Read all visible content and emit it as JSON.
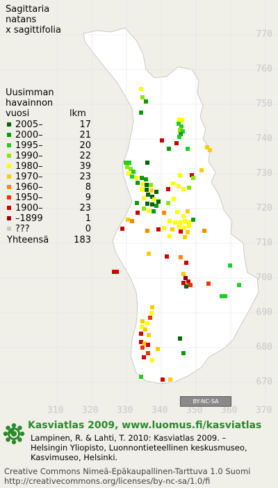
{
  "title_lines": [
    "Sagittaria",
    "natans",
    "x sagittifolia"
  ],
  "legend": {
    "heading_lines": [
      "Uusimman",
      "havainnon"
    ],
    "col_year": "vuosi",
    "col_count": "lkm",
    "items": [
      {
        "label": "2005–",
        "count": "17",
        "color": "#006400"
      },
      {
        "label": "2000–",
        "count": "21",
        "color": "#0a9a0a"
      },
      {
        "label": "1995–",
        "count": "20",
        "color": "#22cc22"
      },
      {
        "label": "1990–",
        "count": "22",
        "color": "#88e800"
      },
      {
        "label": "1980–",
        "count": "39",
        "color": "#ffff00"
      },
      {
        "label": "1970–",
        "count": "23",
        "color": "#ffcc00"
      },
      {
        "label": "1960–",
        "count": "8",
        "color": "#ff8800"
      },
      {
        "label": "1950–",
        "count": "9",
        "color": "#ee3300"
      },
      {
        "label": "1900–",
        "count": "23",
        "color": "#cc0000"
      },
      {
        "label": "–1899",
        "count": "1",
        "color": "#990000"
      },
      {
        "label": "???",
        "count": "0",
        "color": "#c8c8c8"
      }
    ],
    "total_label": "Yhteensä",
    "total_value": "183"
  },
  "axes": {
    "y_ticks": [
      "770",
      "760",
      "750",
      "740",
      "730",
      "720",
      "710",
      "700",
      "690",
      "680",
      "670"
    ],
    "x_ticks": [
      "310",
      "320",
      "330",
      "340",
      "350",
      "360",
      "370"
    ]
  },
  "map_colors": {
    "land": "#ffffff",
    "sea": "#f0f0e8",
    "grid": "#dcdcdc"
  },
  "observations": [
    {
      "x": 203,
      "y": 128,
      "c": "#ffff00"
    },
    {
      "x": 205,
      "y": 140,
      "c": "#88e800"
    },
    {
      "x": 210,
      "y": 146,
      "c": "#0a9a0a"
    },
    {
      "x": 203,
      "y": 162,
      "c": "#0a9a0a"
    },
    {
      "x": 258,
      "y": 172,
      "c": "#ffff00"
    },
    {
      "x": 262,
      "y": 173,
      "c": "#ffff00"
    },
    {
      "x": 257,
      "y": 178,
      "c": "#22cc22"
    },
    {
      "x": 261,
      "y": 182,
      "c": "#22cc22"
    },
    {
      "x": 259,
      "y": 187,
      "c": "#88e800"
    },
    {
      "x": 263,
      "y": 189,
      "c": "#22cc22"
    },
    {
      "x": 260,
      "y": 193,
      "c": "#0a9a0a"
    },
    {
      "x": 258,
      "y": 197,
      "c": "#22cc22"
    },
    {
      "x": 233,
      "y": 202,
      "c": "#cc0000"
    },
    {
      "x": 254,
      "y": 206,
      "c": "#cc0000"
    },
    {
      "x": 298,
      "y": 212,
      "c": "#ffcc00"
    },
    {
      "x": 302,
      "y": 216,
      "c": "#ffcc00"
    },
    {
      "x": 243,
      "y": 214,
      "c": "#0a9a0a"
    },
    {
      "x": 270,
      "y": 214,
      "c": "#22cc22"
    },
    {
      "x": 181,
      "y": 234,
      "c": "#22cc22"
    },
    {
      "x": 186,
      "y": 234,
      "c": "#22cc22"
    },
    {
      "x": 212,
      "y": 234,
      "c": "#006400"
    },
    {
      "x": 183,
      "y": 240,
      "c": "#88e800"
    },
    {
      "x": 188,
      "y": 243,
      "c": "#88e800"
    },
    {
      "x": 192,
      "y": 247,
      "c": "#22cc22"
    },
    {
      "x": 185,
      "y": 250,
      "c": "#ffff00"
    },
    {
      "x": 190,
      "y": 254,
      "c": "#22cc22"
    },
    {
      "x": 196,
      "y": 256,
      "c": "#ffff00"
    },
    {
      "x": 204,
      "y": 256,
      "c": "#0a9a0a"
    },
    {
      "x": 210,
      "y": 258,
      "c": "#0a9a0a"
    },
    {
      "x": 259,
      "y": 252,
      "c": "#ffff00"
    },
    {
      "x": 276,
      "y": 252,
      "c": "#cc0000"
    },
    {
      "x": 278,
      "y": 256,
      "c": "#88e800"
    },
    {
      "x": 290,
      "y": 245,
      "c": "#ffcc00"
    },
    {
      "x": 198,
      "y": 263,
      "c": "#0a9a0a"
    },
    {
      "x": 206,
      "y": 265,
      "c": "#ffff00"
    },
    {
      "x": 211,
      "y": 266,
      "c": "#006400"
    },
    {
      "x": 217,
      "y": 266,
      "c": "#88e800"
    },
    {
      "x": 249,
      "y": 264,
      "c": "#ffff00"
    },
    {
      "x": 257,
      "y": 268,
      "c": "#ffff00"
    },
    {
      "x": 264,
      "y": 272,
      "c": "#ffff00"
    },
    {
      "x": 272,
      "y": 270,
      "c": "#88e800"
    },
    {
      "x": 242,
      "y": 272,
      "c": "#cc0000"
    },
    {
      "x": 204,
      "y": 272,
      "c": "#ffff00"
    },
    {
      "x": 211,
      "y": 273,
      "c": "#006400"
    },
    {
      "x": 218,
      "y": 274,
      "c": "#ffcc00"
    },
    {
      "x": 225,
      "y": 276,
      "c": "#006400"
    },
    {
      "x": 213,
      "y": 280,
      "c": "#006400"
    },
    {
      "x": 219,
      "y": 283,
      "c": "#006400"
    },
    {
      "x": 207,
      "y": 285,
      "c": "#ffff00"
    },
    {
      "x": 222,
      "y": 287,
      "c": "#ffff00"
    },
    {
      "x": 228,
      "y": 290,
      "c": "#006400"
    },
    {
      "x": 197,
      "y": 292,
      "c": "#0a9a0a"
    },
    {
      "x": 212,
      "y": 293,
      "c": "#006400"
    },
    {
      "x": 219,
      "y": 294,
      "c": "#006400"
    },
    {
      "x": 225,
      "y": 296,
      "c": "#0a9a0a"
    },
    {
      "x": 242,
      "y": 292,
      "c": "#88e800"
    },
    {
      "x": 250,
      "y": 286,
      "c": "#ffff00"
    },
    {
      "x": 207,
      "y": 300,
      "c": "#88e800"
    },
    {
      "x": 214,
      "y": 303,
      "c": "#ffff00"
    },
    {
      "x": 221,
      "y": 304,
      "c": "#0a9a0a"
    },
    {
      "x": 198,
      "y": 306,
      "c": "#cc0000"
    },
    {
      "x": 236,
      "y": 306,
      "c": "#ff8800"
    },
    {
      "x": 255,
      "y": 305,
      "c": "#ffff00"
    },
    {
      "x": 270,
      "y": 304,
      "c": "#ffcc00"
    },
    {
      "x": 264,
      "y": 311,
      "c": "#ffff00"
    },
    {
      "x": 184,
      "y": 316,
      "c": "#ffcc00"
    },
    {
      "x": 190,
      "y": 318,
      "c": "#ff8800"
    },
    {
      "x": 244,
      "y": 318,
      "c": "#ffff00"
    },
    {
      "x": 252,
      "y": 320,
      "c": "#ffff00"
    },
    {
      "x": 259,
      "y": 320,
      "c": "#ffff00"
    },
    {
      "x": 266,
      "y": 318,
      "c": "#ffff00"
    },
    {
      "x": 272,
      "y": 320,
      "c": "#ffff00"
    },
    {
      "x": 278,
      "y": 316,
      "c": "#0a9a0a"
    },
    {
      "x": 258,
      "y": 326,
      "c": "#ffff00"
    },
    {
      "x": 265,
      "y": 328,
      "c": "#ffff00"
    },
    {
      "x": 272,
      "y": 325,
      "c": "#ffff00"
    },
    {
      "x": 248,
      "y": 330,
      "c": "#ffcc00"
    },
    {
      "x": 236,
      "y": 328,
      "c": "#ffff00"
    },
    {
      "x": 176,
      "y": 329,
      "c": "#cc0000"
    },
    {
      "x": 212,
      "y": 332,
      "c": "#ff8800"
    },
    {
      "x": 228,
      "y": 330,
      "c": "#cc0000"
    },
    {
      "x": 260,
      "y": 333,
      "c": "#cc0000"
    },
    {
      "x": 270,
      "y": 334,
      "c": "#ffcc00"
    },
    {
      "x": 294,
      "y": 332,
      "c": "#ff8800"
    },
    {
      "x": 244,
      "y": 340,
      "c": "#ffff00"
    },
    {
      "x": 266,
      "y": 341,
      "c": "#ffcc00"
    },
    {
      "x": 214,
      "y": 365,
      "c": "#ffcc00"
    },
    {
      "x": 240,
      "y": 369,
      "c": "#cc0000"
    },
    {
      "x": 260,
      "y": 370,
      "c": "#ff8800"
    },
    {
      "x": 268,
      "y": 378,
      "c": "#cc0000"
    },
    {
      "x": 331,
      "y": 382,
      "c": "#22cc22"
    },
    {
      "x": 164,
      "y": 391,
      "c": "#cc0000"
    },
    {
      "x": 168,
      "y": 391,
      "c": "#cc0000"
    },
    {
      "x": 264,
      "y": 394,
      "c": "#ffcc00"
    },
    {
      "x": 267,
      "y": 400,
      "c": "#990000"
    },
    {
      "x": 271,
      "y": 405,
      "c": "#cc0000"
    },
    {
      "x": 264,
      "y": 407,
      "c": "#cc0000"
    },
    {
      "x": 274,
      "y": 410,
      "c": "#ee3300"
    },
    {
      "x": 268,
      "y": 412,
      "c": "#006400"
    },
    {
      "x": 300,
      "y": 408,
      "c": "#ee3300"
    },
    {
      "x": 344,
      "y": 410,
      "c": "#22cc22"
    },
    {
      "x": 319,
      "y": 426,
      "c": "#22cc22"
    },
    {
      "x": 324,
      "y": 426,
      "c": "#22cc22"
    },
    {
      "x": 219,
      "y": 442,
      "c": "#ffcc00"
    },
    {
      "x": 218,
      "y": 450,
      "c": "#ffff00"
    },
    {
      "x": 216,
      "y": 457,
      "c": "#ee3300"
    },
    {
      "x": 205,
      "y": 462,
      "c": "#ffcc00"
    },
    {
      "x": 212,
      "y": 465,
      "c": "#ffff00"
    },
    {
      "x": 204,
      "y": 470,
      "c": "#ffff00"
    },
    {
      "x": 209,
      "y": 474,
      "c": "#ffcc00"
    },
    {
      "x": 203,
      "y": 480,
      "c": "#cc0000"
    },
    {
      "x": 214,
      "y": 482,
      "c": "#ffcc00"
    },
    {
      "x": 259,
      "y": 487,
      "c": "#006400"
    },
    {
      "x": 203,
      "y": 492,
      "c": "#cc0000"
    },
    {
      "x": 208,
      "y": 494,
      "c": "#ffcc00"
    },
    {
      "x": 213,
      "y": 496,
      "c": "#cc0000"
    },
    {
      "x": 205,
      "y": 500,
      "c": "#ee3300"
    },
    {
      "x": 227,
      "y": 502,
      "c": "#ffcc00"
    },
    {
      "x": 213,
      "y": 508,
      "c": "#ee3300"
    },
    {
      "x": 264,
      "y": 508,
      "c": "#0a9a0a"
    },
    {
      "x": 207,
      "y": 514,
      "c": "#cc0000"
    },
    {
      "x": 219,
      "y": 518,
      "c": "#ffff00"
    },
    {
      "x": 203,
      "y": 542,
      "c": "#22cc22"
    },
    {
      "x": 234,
      "y": 546,
      "c": "#cc0000"
    },
    {
      "x": 245,
      "y": 546,
      "c": "#ffcc00"
    }
  ],
  "cc_badge": "BY-NC-SA",
  "footer": {
    "brand": "Kasviatlas 2009, www.luomus.fi/kasviatlas",
    "ref_lines": [
      "Lampinen, R. & Lahti, T. 2010: Kasviatlas 2009. –",
      "Helsingin Yliopisto, Luonnontieteellinen keskusmuseo,",
      "Kasvimuseo, Helsinki."
    ],
    "license_lines": [
      "Creative Commons Nimeä-Epäkaupallinen-Tarttuva 1.0 Suomi",
      "http://creativecommons.org/licenses/by-nc-sa/1.0/fi"
    ]
  }
}
